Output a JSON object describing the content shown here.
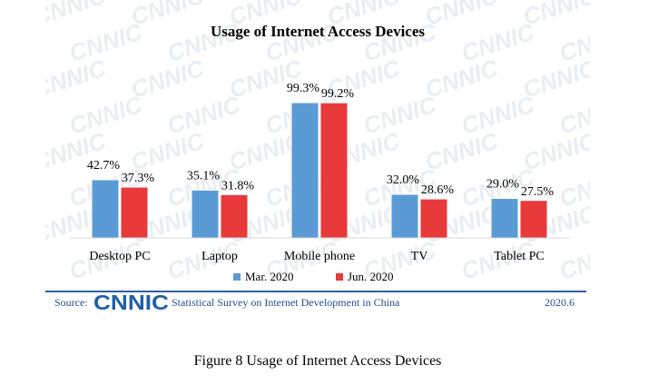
{
  "chart_data": {
    "type": "bar",
    "title": "Usage of Internet Access Devices",
    "categories": [
      "Desktop PC",
      "Laptop",
      "Mobile phone",
      "TV",
      "Tablet PC"
    ],
    "series": [
      {
        "name": "Mar. 2020",
        "values": [
          42.7,
          35.1,
          99.3,
          32.0,
          29.0
        ],
        "labels": [
          "42.7%",
          "35.1%",
          "99.3%",
          "32.0%",
          "29.0%"
        ],
        "color": "#5b9bd5"
      },
      {
        "name": "Jun. 2020",
        "values": [
          37.3,
          31.8,
          99.2,
          28.6,
          27.5
        ],
        "labels": [
          "37.3%",
          "31.8%",
          "99.2%",
          "28.6%",
          "27.5%"
        ],
        "color": "#e8393b"
      }
    ],
    "unit": "%",
    "ylim": [
      0,
      100
    ],
    "grid": false,
    "legend_position": "bottom"
  },
  "source": {
    "label": "Source:",
    "logo_text": "CNNIC",
    "text": "Statistical Survey on Internet Development in China",
    "date": "2020.6"
  },
  "watermark_text": "CNNIC",
  "caption": "Figure 8 Usage of Internet Access Devices",
  "colors": {
    "frame": "#2e5ea8",
    "mar": "#5b9bd5",
    "jun": "#e8393b"
  }
}
